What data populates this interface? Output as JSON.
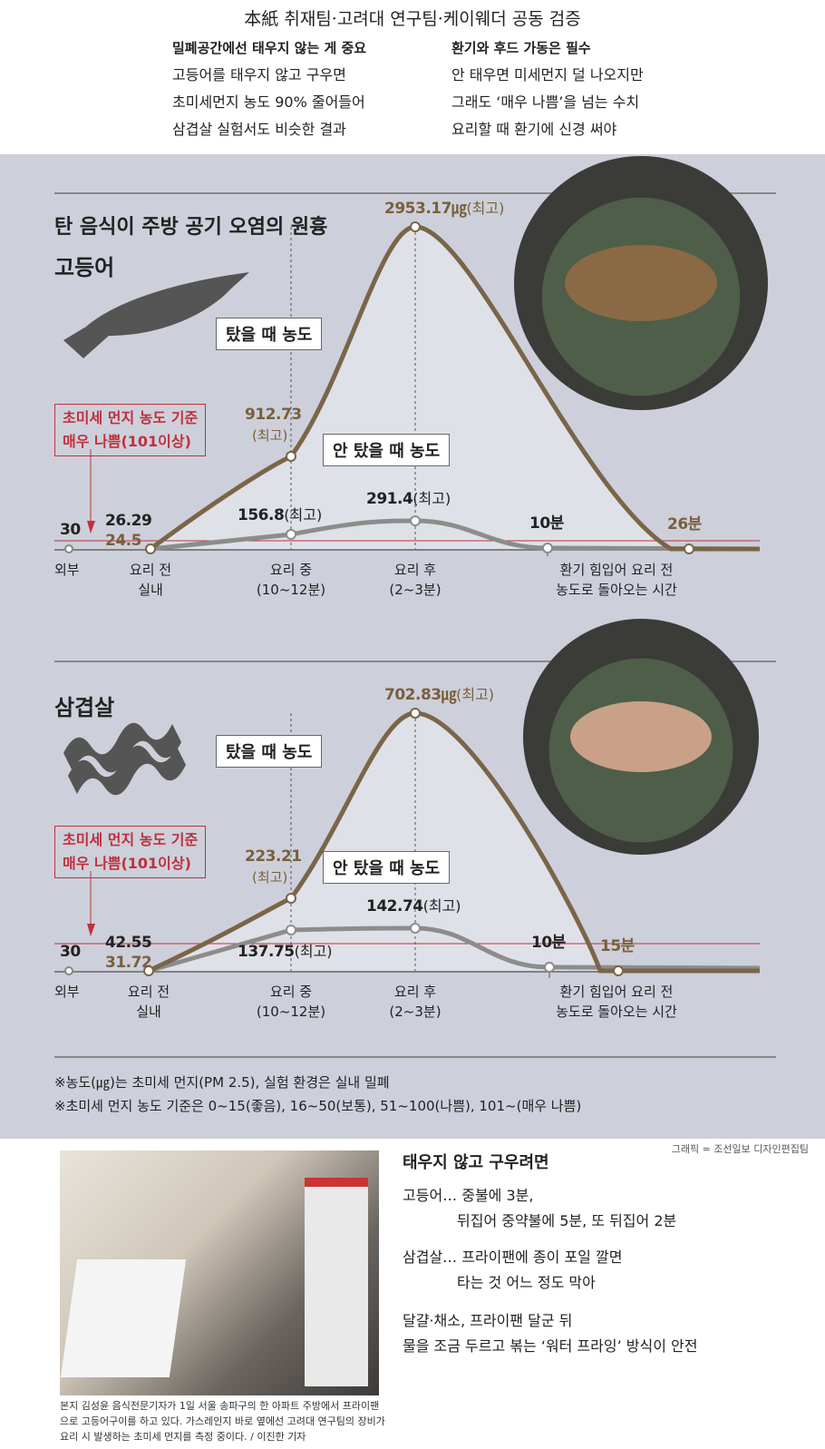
{
  "header": {
    "title": "本紙 취재팀·고려대 연구팀·케이웨더 공동 검증",
    "left": {
      "heading": "밀폐공간에선 태우지 않는 게 중요",
      "lines": [
        "고등어를 태우지 않고 구우면",
        "초미세먼지 농도 90% 줄어들어",
        "삼겹살 실험서도 비슷한 결과"
      ]
    },
    "right": {
      "heading": "환기와 후드 가동은 필수",
      "lines": [
        "안 태우면 미세먼지 덜 나오지만",
        "그래도 ‘매우 나쁨’을 넘는 수치",
        "요리할 때 환기에 신경 써야"
      ]
    }
  },
  "section_title": "탄 음식이 주방 공기 오염의 원흉",
  "colors": {
    "burnt": "#7a6548",
    "unburnt": "#8c8c8c",
    "threshold": "#c0303c",
    "panel": "#cdd0da"
  },
  "chart_data": [
    {
      "type": "line",
      "title": "고등어",
      "categories": [
        "외부",
        "요리 전 실내",
        "요리 중 (10~12분)",
        "요리 후 (2~3분)",
        "10분",
        "26분"
      ],
      "threshold": {
        "value": 101,
        "label": "초미세 먼지 농도 기준 매우 나쁨(101이상)"
      },
      "outside": 30,
      "series": [
        {
          "name": "탔을 때 농도",
          "values": [
            null,
            24.5,
            912.73,
            2953.17,
            null,
            24.5
          ]
        },
        {
          "name": "안 탔을 때 농도",
          "values": [
            null,
            26.29,
            156.8,
            291.4,
            26.29,
            null
          ]
        }
      ],
      "labels": {
        "outside": "30",
        "before_unburnt": "26.29",
        "before_burnt": "24.5",
        "during_burnt": "912.73",
        "during_burnt_note": "(최고)",
        "during_unburnt": "156.8",
        "peak_burnt": "2953.17㎍",
        "peak_unburnt": "291.4",
        "max_note": "(최고)",
        "recover_unburnt": "10분",
        "recover_burnt": "26분"
      }
    },
    {
      "type": "line",
      "title": "삼겹살",
      "categories": [
        "외부",
        "요리 전 실내",
        "요리 중 (10~12분)",
        "요리 후 (2~3분)",
        "10분",
        "15분"
      ],
      "threshold": {
        "value": 101,
        "label": "초미세 먼지 농도 기준 매우 나쁨(101이상)"
      },
      "outside": 30,
      "series": [
        {
          "name": "탔을 때 농도",
          "values": [
            null,
            31.72,
            223.21,
            702.83,
            null,
            31.72
          ]
        },
        {
          "name": "안 탔을 때 농도",
          "values": [
            null,
            42.55,
            137.75,
            142.74,
            42.55,
            null
          ]
        }
      ],
      "labels": {
        "outside": "30",
        "before_unburnt": "42.55",
        "before_burnt": "31.72",
        "during_burnt": "223.21",
        "during_burnt_note": "(최고)",
        "during_unburnt": "137.75",
        "peak_burnt": "702.83㎍",
        "peak_unburnt": "142.74",
        "max_note": "(최고)",
        "recover_unburnt": "10분",
        "recover_burnt": "15분"
      }
    }
  ],
  "axis": {
    "outside": "외부",
    "before": [
      "요리 전",
      "실내"
    ],
    "during": [
      "요리 중",
      "(10~12분)"
    ],
    "after": [
      "요리 후",
      "(2~3분)"
    ],
    "recover": [
      "환기 힘입어 요리 전",
      "농도로 돌아오는 시간"
    ]
  },
  "legend": {
    "burnt": "탔을 때 농도",
    "unburnt": "안 탔을 때 농도",
    "redbox1": "초미세 먼지 농도 기준",
    "redbox2": "매우 나쁨(101이상)"
  },
  "notes": [
    "※농도(㎍)는 초미세 먼지(PM 2.5), 실험 환경은 실내 밀폐",
    "※초미세 먼지 농도 기준은 0~15(좋음), 16~50(보통), 51~100(나쁨), 101~(매우 나쁨)"
  ],
  "credit": "그래픽 = 조선일보 디자인편집팀",
  "tips": {
    "heading": "태우지 않고 구우려면",
    "mackerel": [
      "고등어… 중불에 3분,",
      "뒤집어 중약불에 5분, 또 뒤집어 2분"
    ],
    "pork": [
      "삼겹살… 프라이팬에 종이 포일 깔면",
      "타는 것 어느 정도 막아"
    ],
    "veg": [
      "달걀·채소, 프라이팬 달군 뒤",
      "물을 조금 두르고 볶는 ‘워터 프라잉’ 방식이 안전"
    ]
  },
  "caption": "본지 김성윤 음식전문기자가 1일 서울 송파구의 한 아파트 주방에서 프라이팬으로 고등어구이를 하고 있다. 가스레인지 바로 옆에선 고려대 연구팀의 장비가 요리 시 발생하는 초미세 먼지를 측정 중이다. / 이진한 기자"
}
